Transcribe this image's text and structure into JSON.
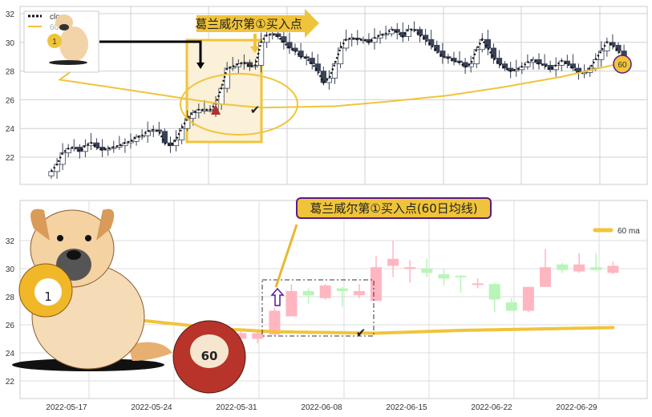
{
  "chart_data": [
    {
      "type": "candlestick",
      "legend": [
        "close",
        "60 ma"
      ],
      "legend_placement": "top-left",
      "yticks": [
        22,
        24,
        26,
        28,
        30,
        32
      ],
      "ylim": [
        20.5,
        32.8
      ],
      "grid": true,
      "close": [
        21.0,
        21.5,
        22.3,
        22.6,
        22.7,
        22.4,
        22.8,
        23.0,
        22.7,
        22.5,
        22.6,
        22.7,
        22.8,
        23.0,
        23.1,
        23.4,
        23.5,
        23.8,
        23.9,
        23.8,
        23.0,
        22.8,
        23.2,
        24.0,
        24.7,
        25.1,
        25.3,
        25.3,
        25.3,
        25.7,
        26.8,
        28.2,
        28.3,
        28.5,
        28.6,
        28.3,
        28.4,
        30.0,
        30.5,
        30.6,
        30.4,
        30.0,
        29.6,
        29.4,
        29.0,
        28.9,
        28.5,
        28.0,
        27.2,
        27.5,
        28.5,
        29.6,
        30.2,
        30.3,
        30.2,
        30.2,
        30.0,
        30.3,
        30.5,
        30.6,
        30.9,
        30.7,
        30.4,
        30.9,
        30.9,
        30.5,
        30.2,
        29.8,
        29.4,
        29.0,
        28.9,
        28.7,
        28.6,
        28.3,
        28.5,
        29.5,
        30.2,
        29.6,
        28.9,
        28.5,
        28.2,
        28.0,
        28.1,
        28.3,
        28.6,
        28.8,
        28.5,
        28.4,
        28.1,
        28.4,
        28.7,
        28.5,
        28.2,
        27.9,
        27.9,
        28.2,
        28.8,
        29.4,
        30.0,
        29.8,
        29.4,
        28.8
      ],
      "ma60_samples": [
        [
          -2,
          27.6
        ],
        [
          10,
          26.9
        ],
        [
          20,
          26.3
        ],
        [
          30,
          25.7
        ],
        [
          37,
          25.45
        ],
        [
          50,
          25.55
        ],
        [
          60,
          25.9
        ],
        [
          70,
          26.3
        ],
        [
          80,
          26.9
        ],
        [
          90,
          27.6
        ],
        [
          100,
          28.5
        ]
      ],
      "annotation": "葛兰威尔第①买入点",
      "end_badge": "60"
    },
    {
      "type": "candlestick",
      "legend": [
        "60 ma"
      ],
      "legend_placement": "top-right",
      "yticks": [
        22,
        24,
        26,
        28,
        30,
        32
      ],
      "ylim": [
        20.8,
        33.3
      ],
      "xticks": [
        "2022-05-17",
        "2022-05-24",
        "2022-05-31",
        "2022-06-08",
        "2022-06-15",
        "2022-06-22",
        "2022-06-29"
      ],
      "grid": true,
      "candles": [
        {
          "o": 23.2,
          "h": 23.6,
          "l": 22.8,
          "c": 23.0
        },
        {
          "o": 23.0,
          "h": 23.4,
          "l": 22.6,
          "c": 23.3
        },
        {
          "o": 25.0,
          "h": 25.5,
          "l": 24.7,
          "c": 25.4
        },
        {
          "o": 25.0,
          "h": 25.5,
          "l": 24.7,
          "c": 25.4
        },
        {
          "o": 25.3,
          "h": 27.2,
          "l": 25.2,
          "c": 27.0
        },
        {
          "o": 26.6,
          "h": 28.9,
          "l": 26.6,
          "c": 28.4
        },
        {
          "o": 28.4,
          "h": 28.6,
          "l": 27.5,
          "c": 28.1
        },
        {
          "o": 27.9,
          "h": 28.9,
          "l": 27.8,
          "c": 28.8
        },
        {
          "o": 28.6,
          "h": 28.7,
          "l": 27.3,
          "c": 28.4
        },
        {
          "o": 28.1,
          "h": 28.9,
          "l": 27.9,
          "c": 28.4
        },
        {
          "o": 27.7,
          "h": 30.9,
          "l": 27.7,
          "c": 30.1
        },
        {
          "o": 30.2,
          "h": 32.0,
          "l": 29.4,
          "c": 30.7
        },
        {
          "o": 30.1,
          "h": 30.6,
          "l": 29.0,
          "c": 30.1
        },
        {
          "o": 30.0,
          "h": 30.7,
          "l": 29.4,
          "c": 29.7
        },
        {
          "o": 29.6,
          "h": 30.0,
          "l": 28.8,
          "c": 29.3
        },
        {
          "o": 29.5,
          "h": 29.5,
          "l": 28.3,
          "c": 29.4
        },
        {
          "o": 28.9,
          "h": 29.3,
          "l": 28.6,
          "c": 28.95
        },
        {
          "o": 28.9,
          "h": 29.0,
          "l": 26.9,
          "c": 27.8
        },
        {
          "o": 27.6,
          "h": 27.9,
          "l": 27.0,
          "c": 27.0
        },
        {
          "o": 27.0,
          "h": 28.7,
          "l": 26.9,
          "c": 28.7
        },
        {
          "o": 28.7,
          "h": 31.4,
          "l": 28.7,
          "c": 30.1
        },
        {
          "o": 30.3,
          "h": 30.4,
          "l": 29.7,
          "c": 29.9
        },
        {
          "o": 29.8,
          "h": 31.1,
          "l": 29.7,
          "c": 30.3
        },
        {
          "o": 30.1,
          "h": 31.1,
          "l": 29.9,
          "c": 29.9
        },
        {
          "o": 29.7,
          "h": 30.5,
          "l": 29.6,
          "c": 30.2
        }
      ],
      "ma60_samples": [
        [
          -7,
          26.7
        ],
        [
          -3,
          26.2
        ],
        [
          1,
          25.7
        ],
        [
          4,
          25.5
        ],
        [
          10,
          25.4
        ],
        [
          15,
          25.6
        ],
        [
          24,
          25.8
        ]
      ],
      "annotation": "葛兰威尔第①买入点(60日均线)",
      "ball_labels": [
        "1",
        "60"
      ]
    }
  ],
  "colors": {
    "up_top": "#ffffff",
    "down_top": "#3a4256",
    "up": "#ffb6c1",
    "down": "#b8f5b8",
    "ma": "#f0c43a",
    "accent": "#5a1a8a"
  }
}
